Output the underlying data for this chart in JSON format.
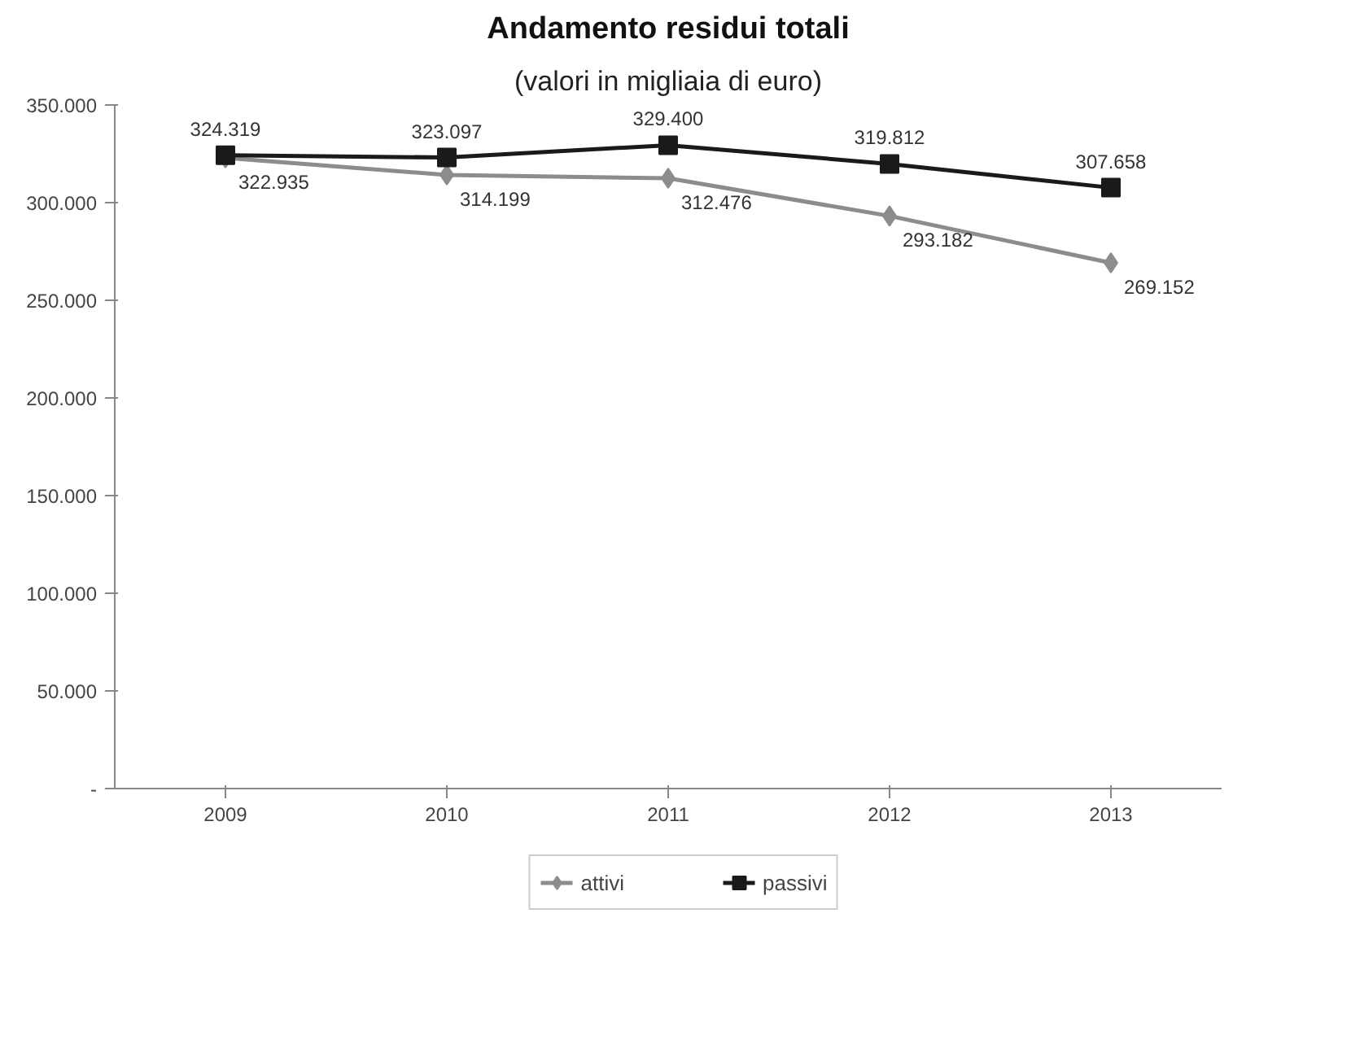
{
  "chart_data": {
    "type": "line",
    "title": "Andamento residui totali",
    "subtitle": "(valori in migliaia di euro)",
    "categories": [
      "2009",
      "2010",
      "2011",
      "2012",
      "2013"
    ],
    "series": [
      {
        "name": "attivi",
        "color": "#8c8c8c",
        "marker": "diamond",
        "values": [
          322935,
          314199,
          312476,
          293182,
          269152
        ],
        "value_labels": [
          "322.935",
          "314.199",
          "312.476",
          "293.182",
          "269.152"
        ]
      },
      {
        "name": "passivi",
        "color": "#1a1a1a",
        "marker": "square",
        "values": [
          324319,
          323097,
          329400,
          319812,
          307658
        ],
        "value_labels": [
          "324.319",
          "323.097",
          "329.400",
          "319.812",
          "307.658"
        ]
      }
    ],
    "ylim": [
      0,
      350000
    ],
    "yticks": [
      {
        "value": 0,
        "label": "-"
      },
      {
        "value": 50000,
        "label": "50.000"
      },
      {
        "value": 100000,
        "label": "100.000"
      },
      {
        "value": 150000,
        "label": "150.000"
      },
      {
        "value": 200000,
        "label": "200.000"
      },
      {
        "value": 250000,
        "label": "250.000"
      },
      {
        "value": 300000,
        "label": "300.000"
      },
      {
        "value": 350000,
        "label": "350.000"
      }
    ],
    "grid": false,
    "legend": "bottom",
    "line_style": "solid"
  }
}
